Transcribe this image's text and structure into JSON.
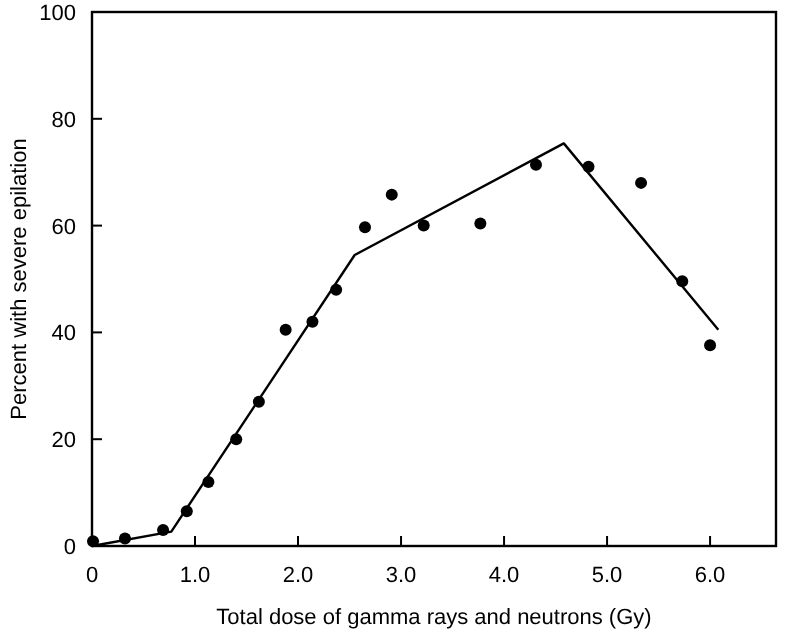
{
  "chart_data": {
    "type": "scatter",
    "xlabel": "Total dose of gamma rays and neutrons (Gy)",
    "ylabel": "Percent with severe epilation",
    "xlim": [
      0,
      6.64
    ],
    "ylim": [
      0,
      100
    ],
    "xticks": [
      0,
      {
        "value": 1,
        "label": "1.0"
      },
      {
        "value": 2,
        "label": "2.0"
      },
      {
        "value": 3,
        "label": "3.0"
      },
      {
        "value": 4,
        "label": "4.0"
      },
      {
        "value": 5,
        "label": "5.0"
      },
      {
        "value": 6,
        "label": "6.0"
      }
    ],
    "yticks": [
      0,
      20,
      40,
      60,
      80,
      100
    ],
    "grid": false,
    "series": [
      {
        "color": "#000000",
        "marker": "circle",
        "x": [
          0.01,
          0.32,
          0.69,
          0.92,
          1.13,
          1.4,
          1.62,
          1.88,
          2.14,
          2.37,
          2.65,
          2.91,
          3.22,
          3.77,
          4.31,
          4.82,
          5.33,
          5.73,
          6.0
        ],
        "values": [
          0.9,
          1.4,
          3,
          6.5,
          12,
          20,
          27,
          40.5,
          42,
          48,
          59.7,
          65.8,
          60,
          60.4,
          71.4,
          71,
          68,
          49.6,
          37.6
        ]
      },
      {
        "type": "line",
        "color": "#000000",
        "marker": "none",
        "line_style": "solid",
        "x": [
          0,
          0.77,
          2.55,
          4.58,
          6.08
        ],
        "values": [
          0,
          2.7,
          54.5,
          75.4,
          40.5
        ]
      }
    ]
  }
}
